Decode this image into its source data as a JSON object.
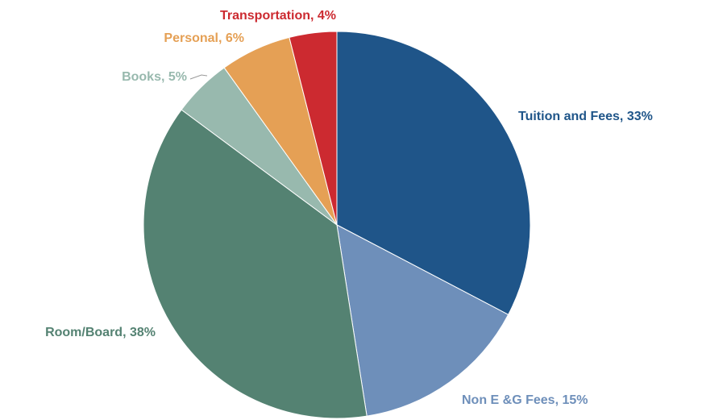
{
  "chart_data": {
    "type": "pie",
    "values": [
      33,
      15,
      38,
      5,
      6,
      4
    ],
    "value_labels": [
      "Tuition and Fees, 33%",
      "Non E &G Fees, 15%",
      "Room/Board, 38%",
      "Books, 5%",
      "Personal, 6%",
      "Transportation, 4%"
    ],
    "colors": [
      "#1f5589",
      "#6e8fba",
      "#548272",
      "#98b9ae",
      "#e5a055",
      "#cc2a30"
    ]
  }
}
